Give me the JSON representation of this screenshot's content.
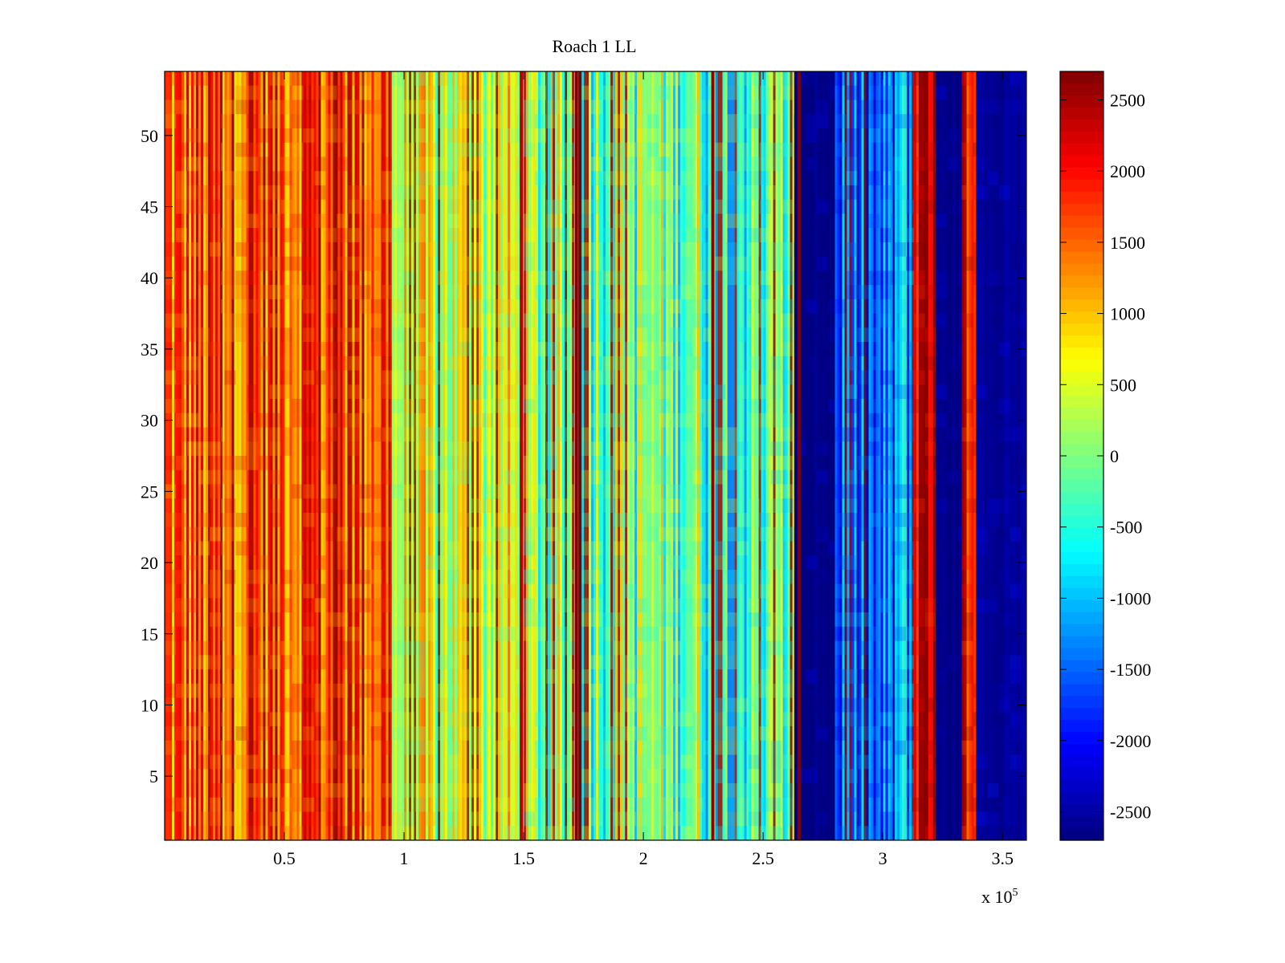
{
  "chart_data": {
    "type": "heatmap",
    "title": "Roach 1 LL",
    "xlabel": "",
    "ylabel": "",
    "x_exponent_label": "x 10",
    "x_exponent_power": "5",
    "xlim": [
      0,
      360000
    ],
    "ylim": [
      0.5,
      54.5
    ],
    "x_ticks": [
      50000,
      100000,
      150000,
      200000,
      250000,
      300000,
      350000
    ],
    "x_tick_labels": [
      "0.5",
      "1",
      "1.5",
      "2",
      "2.5",
      "3",
      "3.5"
    ],
    "y_ticks": [
      5,
      10,
      15,
      20,
      25,
      30,
      35,
      40,
      45,
      50
    ],
    "y_tick_labels": [
      "5",
      "10",
      "15",
      "20",
      "25",
      "30",
      "35",
      "40",
      "45",
      "50"
    ],
    "colorbar": {
      "colormap": "jet",
      "clim": [
        -2700,
        2700
      ],
      "ticks": [
        2500,
        2000,
        1500,
        1000,
        500,
        0,
        -500,
        -1000,
        -1500,
        -2000,
        -2500
      ],
      "tick_labels": [
        "2500",
        "2000",
        "1500",
        "1000",
        "500",
        "0",
        "-500",
        "-1000",
        "-1500",
        "-2000",
        "-2500"
      ]
    },
    "rows": 54,
    "grid": false,
    "column_bands": [
      {
        "x_range": [
          0,
          25000
        ],
        "approx_value": 1500
      },
      {
        "x_range": [
          25000,
          95000
        ],
        "approx_value": 1700
      },
      {
        "x_range": [
          95000,
          150000
        ],
        "approx_value": 400
      },
      {
        "x_range": [
          150000,
          225000
        ],
        "approx_value": 0
      },
      {
        "x_range": [
          225000,
          263000
        ],
        "approx_value": -300
      },
      {
        "x_range": [
          263000,
          280000
        ],
        "approx_value": -2700
      },
      {
        "x_range": [
          280000,
          305000
        ],
        "approx_value": -1700
      },
      {
        "x_range": [
          305000,
          313000
        ],
        "approx_value": -1200
      },
      {
        "x_range": [
          313000,
          322000
        ],
        "approx_value": 2300
      },
      {
        "x_range": [
          322000,
          333000
        ],
        "approx_value": -2700
      },
      {
        "x_range": [
          333000,
          339000
        ],
        "approx_value": 2200
      },
      {
        "x_range": [
          339000,
          360000
        ],
        "approx_value": -2600
      }
    ],
    "strong_vertical_lines": [
      {
        "x": 149000,
        "approx_value": 2400
      },
      {
        "x": 172000,
        "approx_value": 2700
      },
      {
        "x": 173500,
        "approx_value": 2700
      },
      {
        "x": 229000,
        "approx_value": 2600
      },
      {
        "x": 265000,
        "approx_value": 2700
      }
    ]
  }
}
